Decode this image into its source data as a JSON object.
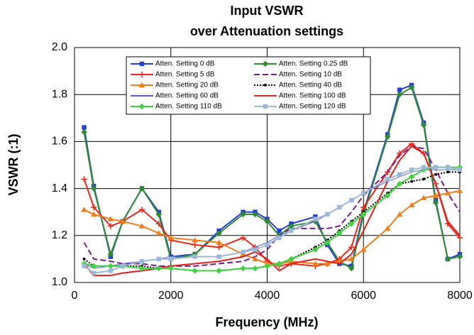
{
  "chart_data": {
    "type": "line",
    "title": "Input VSWR",
    "subtitle": "over Attenuation settings",
    "xlabel": "Frequency (MHz)",
    "ylabel": "VSWR (:1)",
    "xlim": [
      0,
      8000
    ],
    "ylim": [
      1.0,
      2.0
    ],
    "xticks": [
      0,
      2000,
      4000,
      6000,
      8000
    ],
    "yticks": [
      {
        "value": 1.0,
        "label": "1.0"
      },
      {
        "value": 1.2,
        "label": "1.2"
      },
      {
        "value": 1.4,
        "label": "1.4"
      },
      {
        "value": 1.6,
        "label": "1.6"
      },
      {
        "value": 1.8,
        "label": "1.8"
      },
      {
        "value": 2.0,
        "label": "2.0"
      }
    ],
    "grid": true,
    "legend": "top",
    "x": [
      200,
      400,
      750,
      1000,
      1400,
      1750,
      2000,
      2500,
      3000,
      3500,
      3750,
      4000,
      4250,
      4500,
      5000,
      5250,
      5500,
      5750,
      6000,
      6500,
      6750,
      7000,
      7250,
      7500,
      7750,
      8000
    ],
    "series": [
      {
        "name": "Atten. Setting 0 dB",
        "color": "#1f3fd6",
        "marker": "square",
        "dash": "solid",
        "values": [
          1.66,
          1.41,
          1.11,
          1.26,
          1.4,
          1.3,
          1.11,
          1.12,
          1.22,
          1.3,
          1.3,
          1.27,
          1.22,
          1.25,
          1.28,
          1.16,
          1.08,
          1.07,
          1.3,
          1.63,
          1.82,
          1.84,
          1.68,
          1.35,
          1.1,
          1.12
        ]
      },
      {
        "name": "Atten. Setting 0.25 dB",
        "color": "#2e8b2e",
        "marker": "diamond",
        "dash": "solid",
        "values": [
          1.64,
          1.4,
          1.12,
          1.26,
          1.4,
          1.29,
          1.1,
          1.12,
          1.21,
          1.29,
          1.29,
          1.26,
          1.2,
          1.24,
          1.26,
          1.17,
          1.09,
          1.06,
          1.29,
          1.62,
          1.8,
          1.83,
          1.67,
          1.34,
          1.1,
          1.11
        ]
      },
      {
        "name": "Atten. Setting 5 dB",
        "color": "#e8261c",
        "marker": "plus",
        "dash": "solid",
        "values": [
          1.44,
          1.32,
          1.24,
          1.26,
          1.31,
          1.25,
          1.18,
          1.16,
          1.15,
          1.19,
          1.15,
          1.09,
          1.07,
          1.08,
          1.07,
          1.08,
          1.1,
          1.15,
          1.32,
          1.47,
          1.55,
          1.59,
          1.55,
          1.42,
          1.25,
          1.19
        ]
      },
      {
        "name": "Atten. Setting 10 dB",
        "color": "#7a1a8a",
        "marker": "none",
        "dash": "dash",
        "values": [
          1.17,
          1.1,
          1.09,
          1.08,
          1.08,
          1.07,
          1.07,
          1.07,
          1.08,
          1.09,
          1.11,
          1.14,
          1.2,
          1.23,
          1.23,
          1.23,
          1.24,
          1.3,
          1.37,
          1.47,
          1.54,
          1.58,
          1.57,
          1.48,
          1.38,
          1.3
        ]
      },
      {
        "name": "Atten. Setting 20 dB",
        "color": "#f07d1a",
        "marker": "triangle",
        "dash": "solid",
        "values": [
          1.31,
          1.29,
          1.27,
          1.26,
          1.24,
          1.21,
          1.19,
          1.18,
          1.17,
          1.12,
          1.1,
          1.08,
          1.08,
          1.09,
          1.08,
          1.08,
          1.09,
          1.1,
          1.14,
          1.23,
          1.29,
          1.33,
          1.36,
          1.37,
          1.38,
          1.39
        ]
      },
      {
        "name": "Atten. Setting 40 dB",
        "color": "#000000",
        "marker": "circle",
        "dash": "dot",
        "values": [
          1.1,
          1.07,
          1.07,
          1.07,
          1.07,
          1.06,
          1.06,
          1.05,
          1.05,
          1.06,
          1.06,
          1.07,
          1.08,
          1.1,
          1.15,
          1.18,
          1.22,
          1.26,
          1.3,
          1.38,
          1.42,
          1.43,
          1.44,
          1.46,
          1.47,
          1.47
        ]
      },
      {
        "name": "Atten. Setting 60 dB",
        "color": "#5a5ad6",
        "marker": "none",
        "dash": "solid",
        "values": [
          1.08,
          1.06,
          1.07,
          1.08,
          1.09,
          1.1,
          1.11,
          1.11,
          1.11,
          1.13,
          1.15,
          1.17,
          1.2,
          1.22,
          1.26,
          1.29,
          1.32,
          1.35,
          1.38,
          1.43,
          1.45,
          1.47,
          1.48,
          1.48,
          1.48,
          1.48
        ]
      },
      {
        "name": "Atten. Setting 100 dB",
        "color": "#e0201a",
        "marker": "none",
        "dash": "solid",
        "values": [
          1.08,
          1.03,
          1.03,
          1.04,
          1.05,
          1.06,
          1.07,
          1.08,
          1.09,
          1.11,
          1.13,
          1.1,
          1.05,
          1.08,
          1.1,
          1.09,
          1.08,
          1.12,
          1.22,
          1.43,
          1.52,
          1.58,
          1.55,
          1.42,
          1.26,
          1.2
        ]
      },
      {
        "name": "Atten. Setting 110 dB",
        "color": "#3fd43f",
        "marker": "diamond",
        "dash": "solid",
        "values": [
          1.08,
          1.07,
          1.07,
          1.07,
          1.06,
          1.06,
          1.06,
          1.05,
          1.05,
          1.06,
          1.06,
          1.07,
          1.08,
          1.1,
          1.14,
          1.17,
          1.21,
          1.25,
          1.29,
          1.37,
          1.42,
          1.45,
          1.48,
          1.49,
          1.49,
          1.49
        ]
      },
      {
        "name": "Atten. Setting 120 dB",
        "color": "#9ab8d8",
        "marker": "square",
        "dash": "solid",
        "values": [
          1.07,
          1.04,
          1.05,
          1.07,
          1.09,
          1.1,
          1.1,
          1.11,
          1.11,
          1.13,
          1.14,
          1.16,
          1.19,
          1.22,
          1.27,
          1.29,
          1.32,
          1.35,
          1.38,
          1.44,
          1.46,
          1.48,
          1.49,
          1.49,
          1.49,
          1.48
        ]
      }
    ]
  }
}
